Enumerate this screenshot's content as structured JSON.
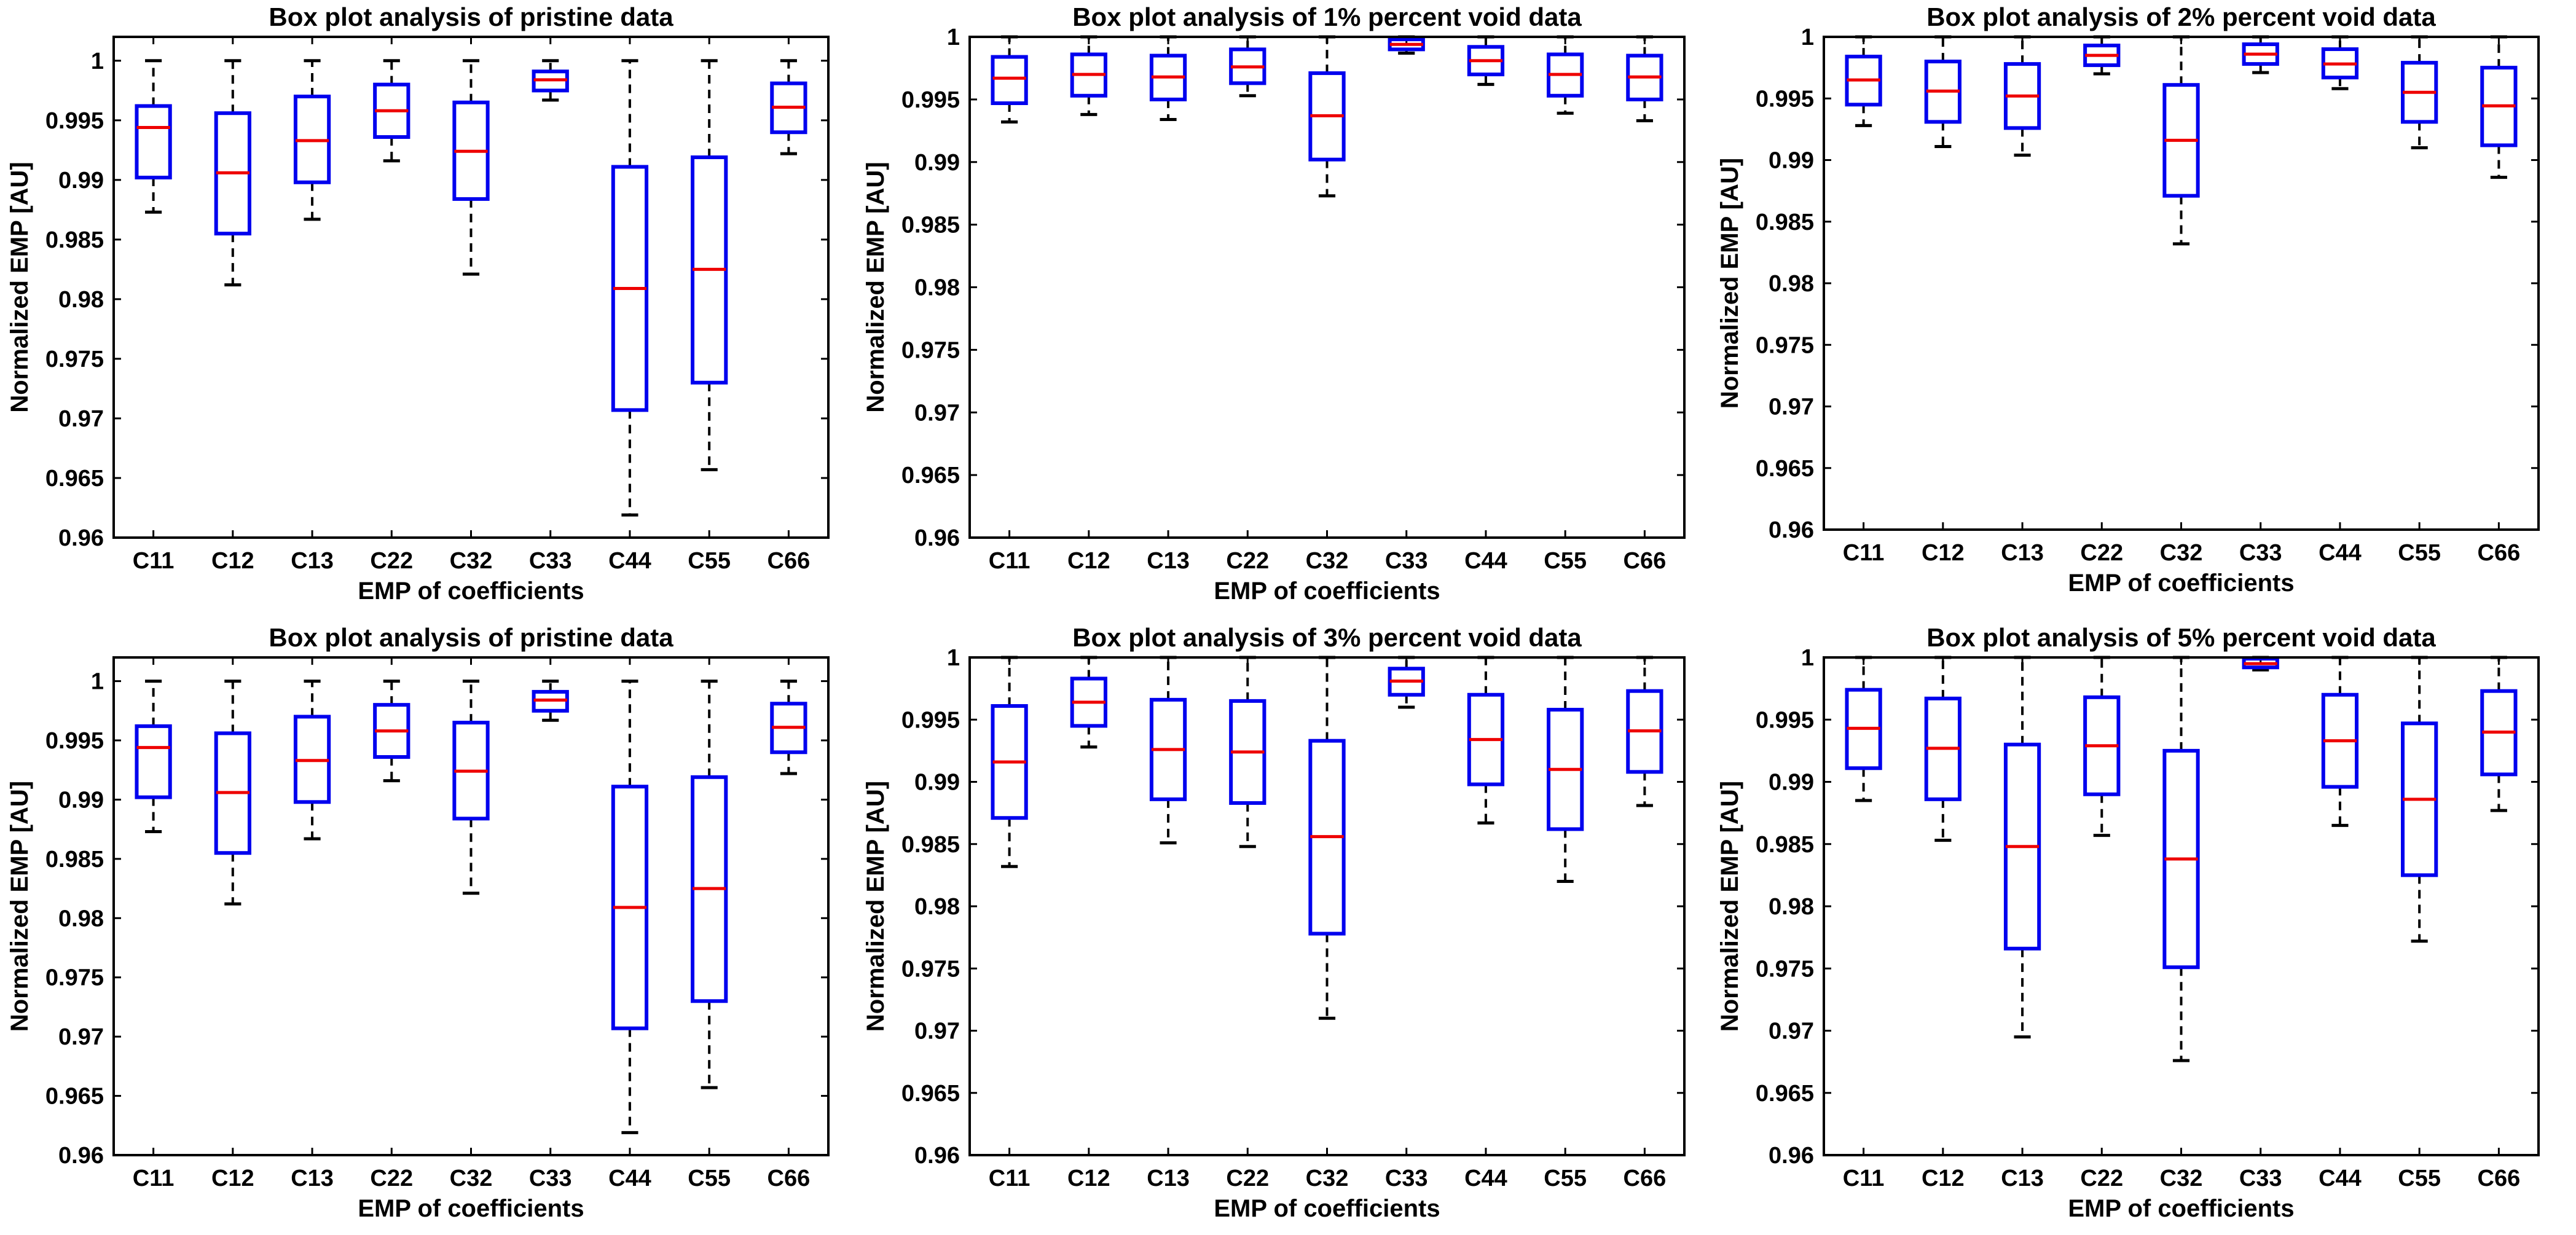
{
  "figure": {
    "background": "#ffffff",
    "box_color": "#0000ee",
    "median_color": "#ee0000",
    "whisker_color": "#000000"
  },
  "chart_data": [
    {
      "type": "box",
      "title": "Box plot analysis of pristine data",
      "xlabel": "EMP of coefficients",
      "ylabel": "Normalized EMP [AU]",
      "ylim": [
        0.96,
        1.002
      ],
      "yticks": [
        0.96,
        0.965,
        0.97,
        0.975,
        0.98,
        0.985,
        0.99,
        0.995,
        1
      ],
      "ytick_labels": [
        "0.96",
        "0.965",
        "0.97",
        "0.975",
        "0.98",
        "0.985",
        "0.99",
        "0.995",
        "1"
      ],
      "categories": [
        "C11",
        "C12",
        "C13",
        "C22",
        "C32",
        "C33",
        "C44",
        "C55",
        "C66"
      ],
      "boxes": [
        {
          "min": 0.9873,
          "q1": 0.9902,
          "median": 0.9944,
          "q3": 0.9962,
          "max": 1.0
        },
        {
          "min": 0.9812,
          "q1": 0.9855,
          "median": 0.9906,
          "q3": 0.9956,
          "max": 1.0
        },
        {
          "min": 0.9867,
          "q1": 0.9898,
          "median": 0.9933,
          "q3": 0.997,
          "max": 1.0
        },
        {
          "min": 0.9916,
          "q1": 0.9936,
          "median": 0.9958,
          "q3": 0.998,
          "max": 1.0
        },
        {
          "min": 0.9821,
          "q1": 0.9884,
          "median": 0.9924,
          "q3": 0.9965,
          "max": 1.0
        },
        {
          "min": 0.9967,
          "q1": 0.9975,
          "median": 0.9984,
          "q3": 0.9991,
          "max": 1.0
        },
        {
          "min": 0.9619,
          "q1": 0.9707,
          "median": 0.9809,
          "q3": 0.9911,
          "max": 1.0
        },
        {
          "min": 0.9657,
          "q1": 0.973,
          "median": 0.9825,
          "q3": 0.9919,
          "max": 1.0
        },
        {
          "min": 0.9922,
          "q1": 0.994,
          "median": 0.9961,
          "q3": 0.9981,
          "max": 1.0
        }
      ]
    },
    {
      "type": "box",
      "title": "Box plot analysis of 1% percent void data",
      "xlabel": "EMP of coefficients",
      "ylabel": "Normalized EMP [AU]",
      "ylim": [
        0.96,
        1.0
      ],
      "yticks": [
        0.96,
        0.965,
        0.97,
        0.975,
        0.98,
        0.985,
        0.99,
        0.995,
        1
      ],
      "ytick_labels": [
        "0.96",
        "0.965",
        "0.97",
        "0.975",
        "0.98",
        "0.985",
        "0.99",
        "0.995",
        "1"
      ],
      "categories": [
        "C11",
        "C12",
        "C13",
        "C22",
        "C32",
        "C33",
        "C44",
        "C55",
        "C66"
      ],
      "boxes": [
        {
          "min": 0.9932,
          "q1": 0.9947,
          "median": 0.9967,
          "q3": 0.9984,
          "max": 1.0
        },
        {
          "min": 0.9938,
          "q1": 0.9953,
          "median": 0.997,
          "q3": 0.9986,
          "max": 1.0
        },
        {
          "min": 0.9934,
          "q1": 0.995,
          "median": 0.9968,
          "q3": 0.9985,
          "max": 1.0
        },
        {
          "min": 0.9953,
          "q1": 0.9963,
          "median": 0.9976,
          "q3": 0.999,
          "max": 1.0
        },
        {
          "min": 0.9873,
          "q1": 0.9902,
          "median": 0.9937,
          "q3": 0.9971,
          "max": 1.0
        },
        {
          "min": 0.9987,
          "q1": 0.999,
          "median": 0.9994,
          "q3": 0.9998,
          "max": 1.0
        },
        {
          "min": 0.9962,
          "q1": 0.997,
          "median": 0.9981,
          "q3": 0.9992,
          "max": 1.0
        },
        {
          "min": 0.9939,
          "q1": 0.9953,
          "median": 0.997,
          "q3": 0.9986,
          "max": 1.0
        },
        {
          "min": 0.9933,
          "q1": 0.995,
          "median": 0.9968,
          "q3": 0.9985,
          "max": 1.0
        }
      ]
    },
    {
      "type": "box",
      "title": "Box plot analysis of 2% percent void data",
      "xlabel": "EMP of coefficients",
      "ylabel": "Normalized EMP [AU]",
      "ylim": [
        0.96,
        1.0
      ],
      "yticks": [
        0.96,
        0.965,
        0.97,
        0.975,
        0.98,
        0.985,
        0.99,
        0.995,
        1
      ],
      "ytick_labels": [
        "0.96",
        "0.965",
        "0.97",
        "0.975",
        "0.98",
        "0.985",
        "0.99",
        "0.995",
        "1"
      ],
      "categories": [
        "C11",
        "C12",
        "C13",
        "C22",
        "C32",
        "C33",
        "C44",
        "C55",
        "C66"
      ],
      "boxes": [
        {
          "min": 0.9928,
          "q1": 0.9945,
          "median": 0.9965,
          "q3": 0.9984,
          "max": 1.0
        },
        {
          "min": 0.9911,
          "q1": 0.9931,
          "median": 0.9956,
          "q3": 0.998,
          "max": 1.0
        },
        {
          "min": 0.9904,
          "q1": 0.9926,
          "median": 0.9952,
          "q3": 0.9978,
          "max": 1.0
        },
        {
          "min": 0.997,
          "q1": 0.9977,
          "median": 0.9985,
          "q3": 0.9993,
          "max": 1.0
        },
        {
          "min": 0.9832,
          "q1": 0.9871,
          "median": 0.9916,
          "q3": 0.9961,
          "max": 1.0
        },
        {
          "min": 0.9971,
          "q1": 0.9978,
          "median": 0.9986,
          "q3": 0.9994,
          "max": 1.0
        },
        {
          "min": 0.9958,
          "q1": 0.9967,
          "median": 0.9978,
          "q3": 0.999,
          "max": 1.0
        },
        {
          "min": 0.991,
          "q1": 0.9931,
          "median": 0.9955,
          "q3": 0.9979,
          "max": 1.0
        },
        {
          "min": 0.9886,
          "q1": 0.9912,
          "median": 0.9944,
          "q3": 0.9975,
          "max": 1.0
        }
      ]
    },
    {
      "type": "box",
      "title": "Box plot analysis of pristine data",
      "xlabel": "EMP of coefficients",
      "ylabel": "Normalized EMP [AU]",
      "ylim": [
        0.96,
        1.002
      ],
      "yticks": [
        0.96,
        0.965,
        0.97,
        0.975,
        0.98,
        0.985,
        0.99,
        0.995,
        1
      ],
      "ytick_labels": [
        "0.96",
        "0.965",
        "0.97",
        "0.975",
        "0.98",
        "0.985",
        "0.99",
        "0.995",
        "1"
      ],
      "categories": [
        "C11",
        "C12",
        "C13",
        "C22",
        "C32",
        "C33",
        "C44",
        "C55",
        "C66"
      ],
      "boxes": [
        {
          "min": 0.9873,
          "q1": 0.9902,
          "median": 0.9944,
          "q3": 0.9962,
          "max": 1.0
        },
        {
          "min": 0.9812,
          "q1": 0.9855,
          "median": 0.9906,
          "q3": 0.9956,
          "max": 1.0
        },
        {
          "min": 0.9867,
          "q1": 0.9898,
          "median": 0.9933,
          "q3": 0.997,
          "max": 1.0
        },
        {
          "min": 0.9916,
          "q1": 0.9936,
          "median": 0.9958,
          "q3": 0.998,
          "max": 1.0
        },
        {
          "min": 0.9821,
          "q1": 0.9884,
          "median": 0.9924,
          "q3": 0.9965,
          "max": 1.0
        },
        {
          "min": 0.9967,
          "q1": 0.9975,
          "median": 0.9984,
          "q3": 0.9991,
          "max": 1.0
        },
        {
          "min": 0.9619,
          "q1": 0.9707,
          "median": 0.9809,
          "q3": 0.9911,
          "max": 1.0
        },
        {
          "min": 0.9657,
          "q1": 0.973,
          "median": 0.9825,
          "q3": 0.9919,
          "max": 1.0
        },
        {
          "min": 0.9922,
          "q1": 0.994,
          "median": 0.9961,
          "q3": 0.9981,
          "max": 1.0
        }
      ]
    },
    {
      "type": "box",
      "title": "Box plot analysis of 3% percent void data",
      "xlabel": "EMP of coefficients",
      "ylabel": "Normalized EMP [AU]",
      "ylim": [
        0.96,
        1.0
      ],
      "yticks": [
        0.96,
        0.965,
        0.97,
        0.975,
        0.98,
        0.985,
        0.99,
        0.995,
        1
      ],
      "ytick_labels": [
        "0.96",
        "0.965",
        "0.97",
        "0.975",
        "0.98",
        "0.985",
        "0.99",
        "0.995",
        "1"
      ],
      "categories": [
        "C11",
        "C12",
        "C13",
        "C22",
        "C32",
        "C33",
        "C44",
        "C55",
        "C66"
      ],
      "boxes": [
        {
          "min": 0.9832,
          "q1": 0.9871,
          "median": 0.9916,
          "q3": 0.9961,
          "max": 1.0
        },
        {
          "min": 0.9928,
          "q1": 0.9945,
          "median": 0.9964,
          "q3": 0.9983,
          "max": 1.0
        },
        {
          "min": 0.9851,
          "q1": 0.9886,
          "median": 0.9926,
          "q3": 0.9966,
          "max": 1.0
        },
        {
          "min": 0.9848,
          "q1": 0.9883,
          "median": 0.9924,
          "q3": 0.9965,
          "max": 1.0
        },
        {
          "min": 0.971,
          "q1": 0.9778,
          "median": 0.9856,
          "q3": 0.9933,
          "max": 1.0
        },
        {
          "min": 0.996,
          "q1": 0.997,
          "median": 0.9981,
          "q3": 0.9991,
          "max": 1.0
        },
        {
          "min": 0.9867,
          "q1": 0.9898,
          "median": 0.9934,
          "q3": 0.997,
          "max": 1.0
        },
        {
          "min": 0.982,
          "q1": 0.9862,
          "median": 0.991,
          "q3": 0.9958,
          "max": 1.0
        },
        {
          "min": 0.9881,
          "q1": 0.9908,
          "median": 0.9941,
          "q3": 0.9973,
          "max": 1.0
        }
      ]
    },
    {
      "type": "box",
      "title": "Box plot analysis of 5% percent void data",
      "xlabel": "EMP of coefficients",
      "ylabel": "Normalized EMP [AU]",
      "ylim": [
        0.96,
        1.0
      ],
      "yticks": [
        0.96,
        0.965,
        0.97,
        0.975,
        0.98,
        0.985,
        0.99,
        0.995,
        1
      ],
      "ytick_labels": [
        "0.96",
        "0.965",
        "0.97",
        "0.975",
        "0.98",
        "0.985",
        "0.99",
        "0.995",
        "1"
      ],
      "categories": [
        "C11",
        "C12",
        "C13",
        "C22",
        "C32",
        "C33",
        "C44",
        "C55",
        "C66"
      ],
      "boxes": [
        {
          "min": 0.9885,
          "q1": 0.9911,
          "median": 0.9943,
          "q3": 0.9974,
          "max": 1.0
        },
        {
          "min": 0.9853,
          "q1": 0.9886,
          "median": 0.9927,
          "q3": 0.9967,
          "max": 1.0
        },
        {
          "min": 0.9695,
          "q1": 0.9766,
          "median": 0.9848,
          "q3": 0.993,
          "max": 1.0
        },
        {
          "min": 0.9857,
          "q1": 0.989,
          "median": 0.9929,
          "q3": 0.9968,
          "max": 1.0
        },
        {
          "min": 0.9676,
          "q1": 0.9751,
          "median": 0.9838,
          "q3": 0.9925,
          "max": 1.0
        },
        {
          "min": 0.999,
          "q1": 0.9992,
          "median": 0.9995,
          "q3": 0.9999,
          "max": 1.0
        },
        {
          "min": 0.9865,
          "q1": 0.9896,
          "median": 0.9933,
          "q3": 0.997,
          "max": 1.0
        },
        {
          "min": 0.9772,
          "q1": 0.9825,
          "median": 0.9886,
          "q3": 0.9947,
          "max": 1.0
        },
        {
          "min": 0.9877,
          "q1": 0.9906,
          "median": 0.994,
          "q3": 0.9973,
          "max": 1.0
        }
      ]
    }
  ]
}
